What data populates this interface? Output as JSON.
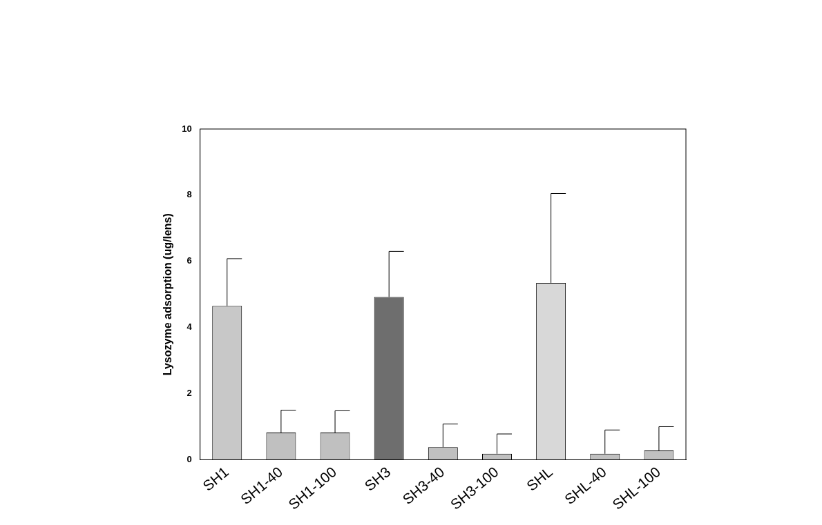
{
  "chart_data": {
    "type": "bar",
    "y_label": "Lysozyme adsorption (ug/lens)",
    "categories": [
      "SH1",
      "SH1-40",
      "SH1-100",
      "SH3",
      "SH3-40",
      "SH3-100",
      "SHL",
      "SHL-40",
      "SHL-100"
    ],
    "values": [
      4.65,
      0.82,
      0.82,
      4.92,
      0.38,
      0.18,
      5.35,
      0.18,
      0.28
    ],
    "errors": [
      1.43,
      0.68,
      0.66,
      1.38,
      0.7,
      0.6,
      2.7,
      0.72,
      0.72
    ],
    "colors": [
      "#c8c8c8",
      "#c0c0c0",
      "#c0c0c0",
      "#6e6e6e",
      "#c0c0c0",
      "#c0c0c0",
      "#d8d8d8",
      "#c0c0c0",
      "#c0c0c0"
    ],
    "ylim": [
      0,
      10
    ],
    "yticks": [
      0,
      2,
      4,
      6,
      8,
      10
    ],
    "grid": false
  }
}
